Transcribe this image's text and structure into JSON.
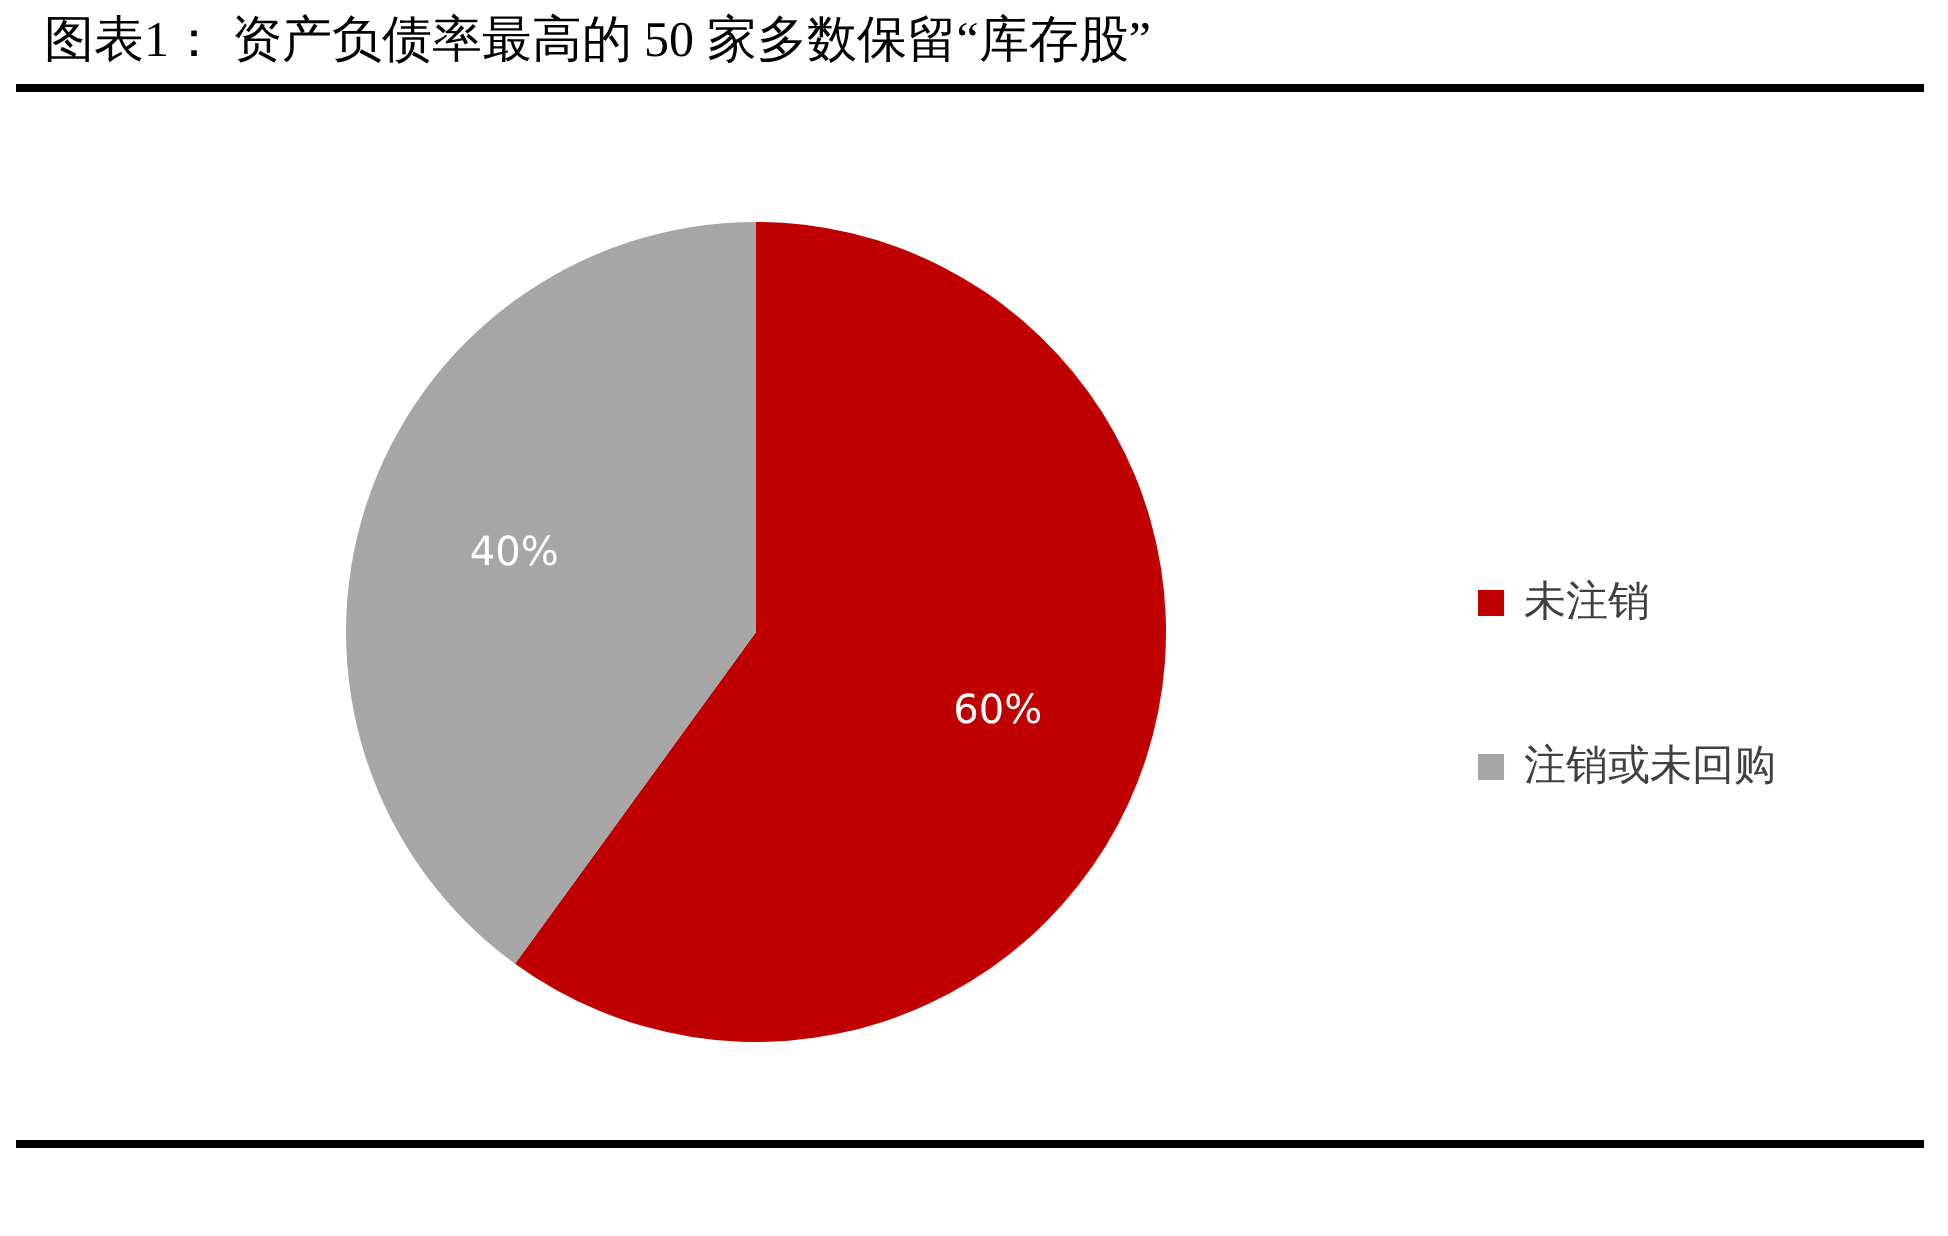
{
  "chart_data": {
    "type": "pie",
    "title": "图表1： 资产负债率最高的 50 家多数保留“库存股”",
    "categories": [
      "未注销",
      "注销或未回购"
    ],
    "values": [
      60,
      40
    ],
    "colors": [
      "#c00000",
      "#a6a6a6"
    ],
    "value_labels": [
      "60%",
      "40%"
    ],
    "legend": "right"
  }
}
